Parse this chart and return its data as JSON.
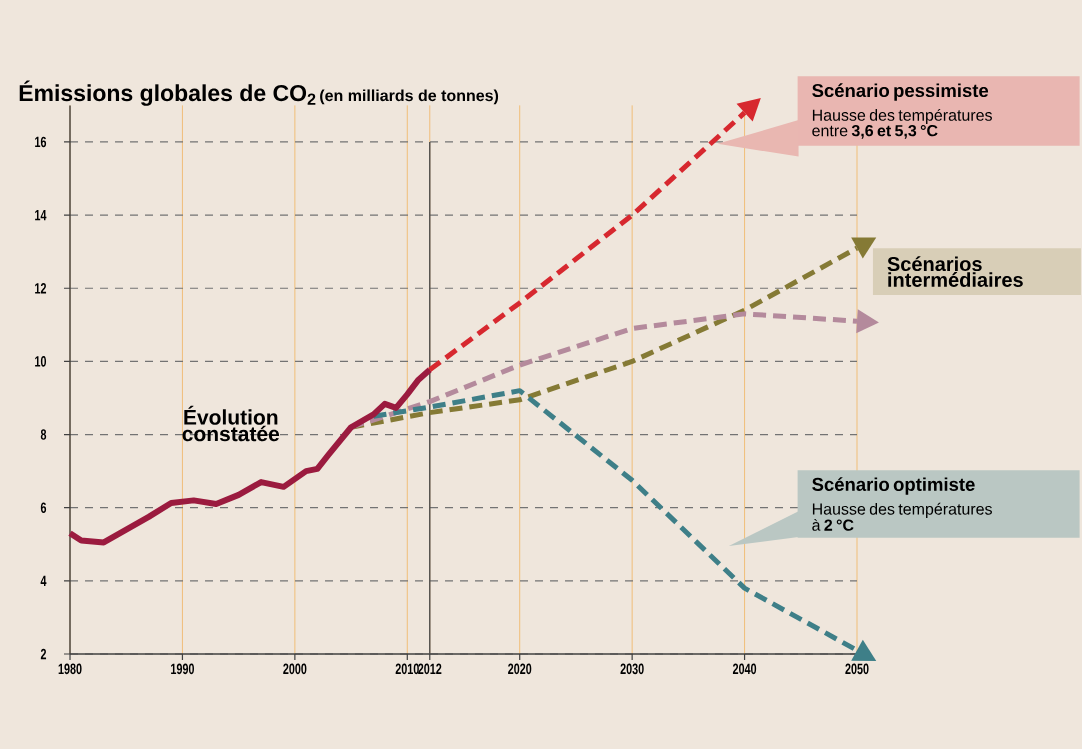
{
  "chart_data": {
    "type": "line",
    "title": "Émissions globales de CO$_{2}$",
    "subtitle": "(en milliards de tonnes)",
    "xlim": [
      1980,
      2050
    ],
    "ylim": [
      2,
      17
    ],
    "xticks": [
      1980,
      1990,
      2000,
      2010,
      {
        "value": 2012,
        "label": "**2012**"
      },
      2020,
      2030,
      2040,
      2050
    ],
    "yticks": [
      2,
      4,
      6,
      8,
      10,
      12,
      14,
      16
    ],
    "grid": true,
    "legend": false,
    "marker": "none",
    "ref_lines": [
      {
        "axis": "x",
        "value": 2012,
        "label": null
      }
    ],
    "series": [
      {
        "name": "Évolution constatée",
        "color": "#9b1b3f",
        "line_style": "solid",
        "x": [
          1980,
          1981,
          1983,
          1985,
          1987,
          1989,
          1991,
          1993,
          1995,
          1997,
          1999,
          2001,
          2002,
          2003,
          2005,
          2007,
          2008,
          2009,
          2010,
          2011,
          2012
        ],
        "values": [
          5.3,
          5.1,
          5.05,
          5.4,
          5.75,
          6.13,
          6.2,
          6.1,
          6.35,
          6.7,
          6.57,
          7.0,
          7.06,
          7.45,
          8.2,
          8.55,
          8.84,
          8.73,
          9.1,
          9.5,
          9.77
        ]
      },
      {
        "name": "Scénario pessimiste",
        "color": "#d7282f",
        "line_style": "dashed",
        "x": [
          2012,
          2020,
          2030,
          2040
        ],
        "values": [
          9.77,
          11.6,
          14.0,
          16.8
        ]
      },
      {
        "color": "#857a35",
        "line_style": "dashed",
        "x": [
          2005,
          2012,
          2020,
          2030,
          2040,
          2050
        ],
        "values": [
          8.2,
          8.6,
          8.95,
          10.0,
          11.4,
          13.1
        ]
      },
      {
        "color": "#b48a9c",
        "line_style": "dashed",
        "x": [
          2005,
          2012,
          2020,
          2030,
          2040,
          2050
        ],
        "values": [
          8.2,
          8.9,
          9.9,
          10.9,
          11.3,
          11.1
        ]
      },
      {
        "name": "Scénario optimiste",
        "color": "#3e7f88",
        "line_style": "dashed",
        "x": [
          2007,
          2012,
          2020,
          2030,
          2040,
          2050
        ],
        "values": [
          8.5,
          8.75,
          9.2,
          6.75,
          3.8,
          2.1
        ]
      }
    ],
    "annotations": [
      "Hausse des températures entre **3,6 et 5,3 °C**",
      "Scénarios intermédiaires",
      "Hausse des températures à **2 °C**"
    ]
  }
}
